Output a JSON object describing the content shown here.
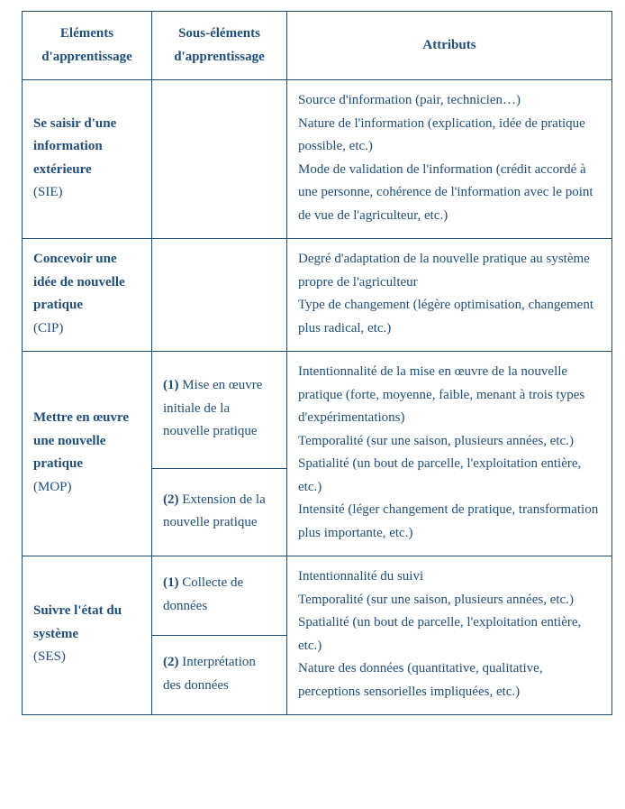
{
  "headers": {
    "col1": "Eléments d'apprentissage",
    "col2": "Sous-éléments d'apprentissage",
    "col3": "Attributs"
  },
  "rows": [
    {
      "element_title": "Se saisir d'une information extérieure",
      "element_code": "(SIE)",
      "sub_elements": [
        {
          "num": "",
          "text": ""
        }
      ],
      "attributes": "Source d'information (pair, technicien…)\nNature de l'information (explication, idée de pratique possible, etc.)\nMode de validation de l'information (crédit accordé à une personne, cohérence de l'information avec le point de vue de l'agriculteur, etc.)"
    },
    {
      "element_title": "Concevoir une idée de nouvelle pratique",
      "element_code": "(CIP)",
      "sub_elements": [
        {
          "num": "",
          "text": ""
        }
      ],
      "attributes": "Degré d'adaptation de la nouvelle pratique au système propre de l'agriculteur\nType de changement (légère optimisation, changement plus radical, etc.)"
    },
    {
      "element_title": "Mettre en œuvre une nouvelle pratique",
      "element_code": "(MOP)",
      "sub_elements": [
        {
          "num": "(1)",
          "text": "Mise en œuvre initiale de la nouvelle pratique"
        },
        {
          "num": "(2)",
          "text": "Extension de la nouvelle pratique"
        }
      ],
      "attributes": "Intentionnalité de la mise en œuvre de la nouvelle pratique (forte, moyenne, faible, menant à trois types d'expérimentations)\nTemporalité (sur une saison, plusieurs années, etc.)\nSpatialité (un bout de parcelle, l'exploitation entière, etc.)\nIntensité (léger changement de pratique, transformation plus importante, etc.)"
    },
    {
      "element_title": "Suivre l'état du système",
      "element_code": "(SES)",
      "sub_elements": [
        {
          "num": "(1)",
          "text": "Collecte de données"
        },
        {
          "num": "(2)",
          "text": "Interprétation des données"
        }
      ],
      "attributes": "Intentionnalité du suivi\nTemporalité (sur une saison, plusieurs années, etc.)\nSpatialité (un bout de parcelle, l'exploitation entière, etc.)\nNature des données (quantitative, qualitative, perceptions sensorielles impliquées, etc.)"
    }
  ]
}
